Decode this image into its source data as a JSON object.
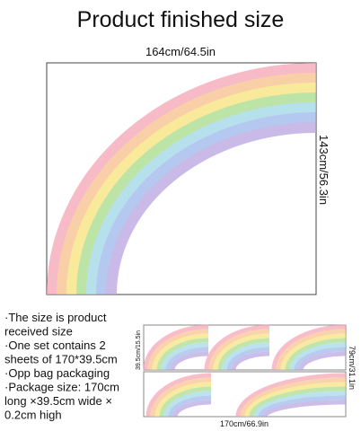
{
  "title": "Product finished size",
  "dimensions": {
    "width": "164cm/64.5in",
    "height": "143cm/56.3in"
  },
  "description": [
    "·The size is product",
    "received size",
    "·One set contains 2",
    "sheets of 170*39.5cm",
    "·Opp bag packaging",
    "·Package size: 170cm",
    "long ×39.5cm wide ×",
    "0.2cm high"
  ],
  "sheets": {
    "height": "39.5cm/15.5in",
    "depth": "79cm/31.1in",
    "width": "170cm/66.9in"
  }
}
